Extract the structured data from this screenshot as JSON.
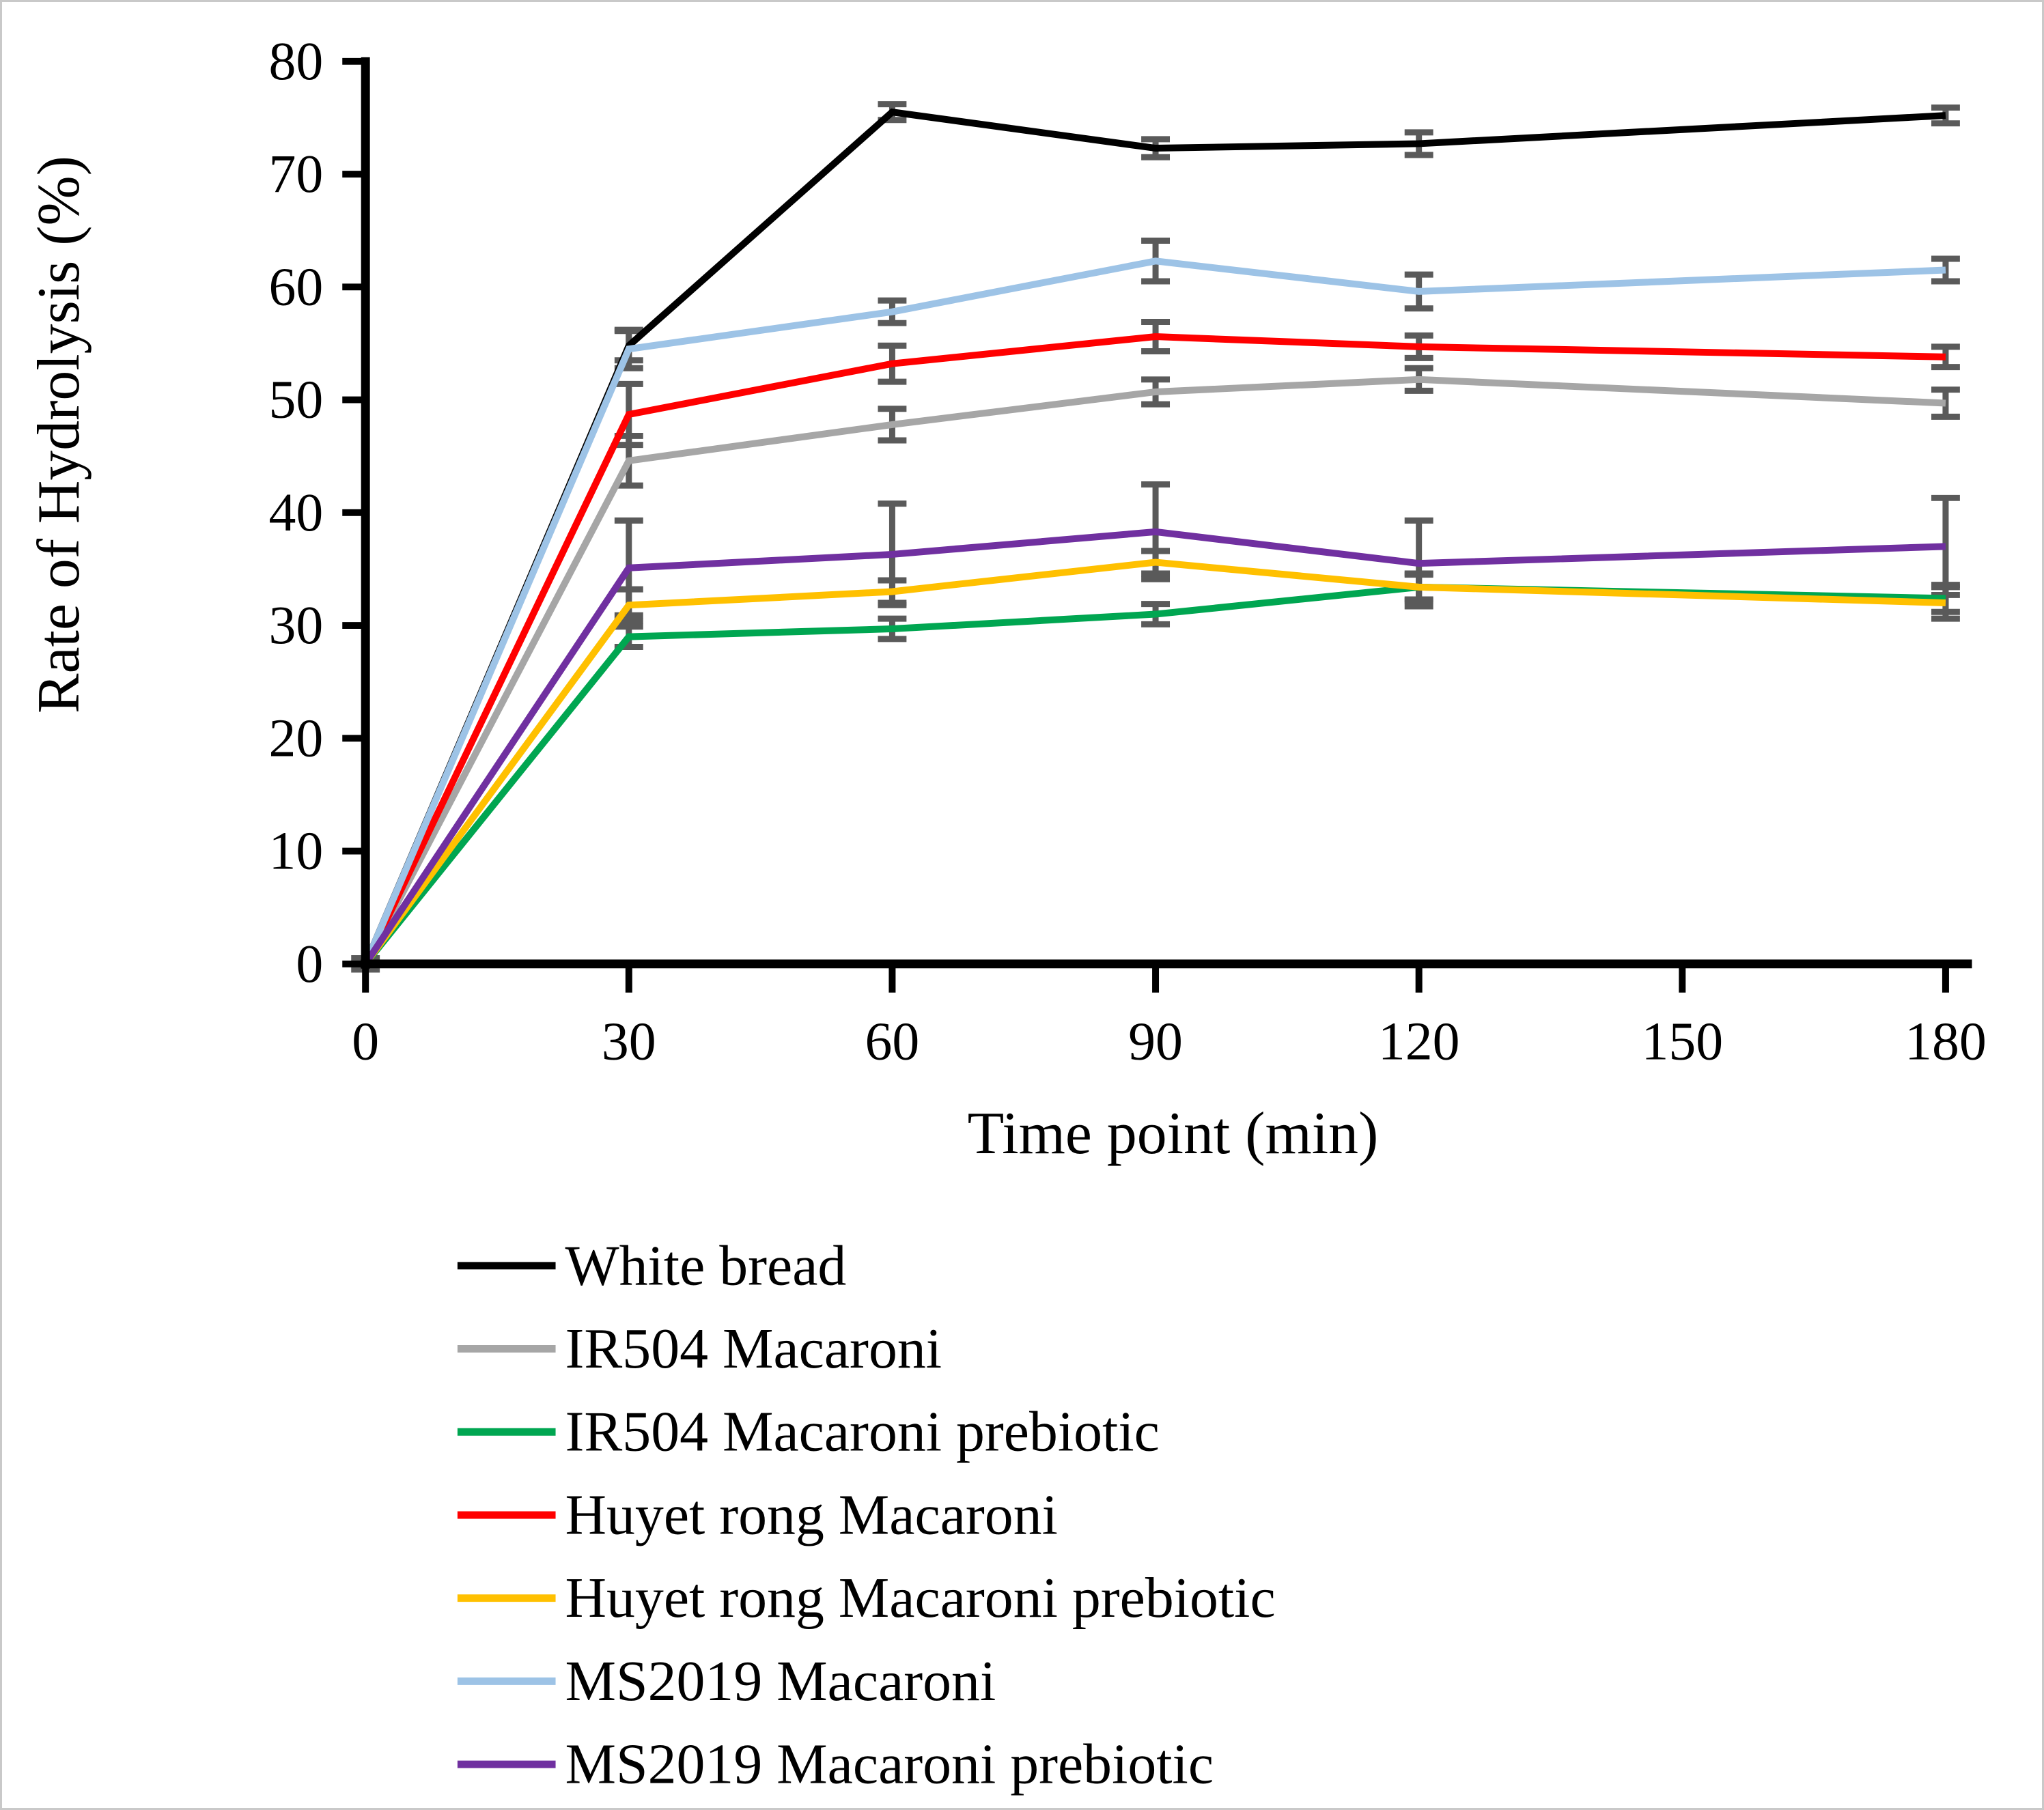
{
  "figure": {
    "background": "#ffffff",
    "border_color": "#c9c9c9",
    "error_bar_color": "#5a5a5a",
    "axis_color": "#000000"
  },
  "chart_data": {
    "type": "line",
    "title": "",
    "xlabel": "Time point (min)",
    "ylabel": "Rate of Hydrolysis (%)",
    "x": [
      0,
      30,
      60,
      90,
      120,
      180
    ],
    "x_ticks": [
      0,
      30,
      60,
      90,
      120,
      150,
      180
    ],
    "xlim": [
      0,
      183
    ],
    "y_ticks": [
      0,
      10,
      20,
      30,
      40,
      50,
      60,
      70,
      80
    ],
    "ylim": [
      0,
      80
    ],
    "grid": false,
    "legend_position": "bottom-left",
    "series": [
      {
        "name": "White bread",
        "color": "#000000",
        "values": [
          0,
          54.8,
          75.5,
          72.3,
          72.7,
          75.2
        ],
        "errors": [
          0,
          1.3,
          0.7,
          0.8,
          1.0,
          0.7
        ]
      },
      {
        "name": "IR504 Macaroni",
        "color": "#a6a6a6",
        "values": [
          0,
          44.6,
          47.8,
          50.7,
          51.8,
          49.7
        ],
        "errors": [
          0.5,
          2.2,
          1.4,
          1.1,
          1.0,
          1.2
        ]
      },
      {
        "name": "IR504 Macaroni prebiotic",
        "color": "#00a651",
        "values": [
          0,
          29.0,
          29.7,
          31.0,
          33.4,
          32.4
        ],
        "errors": [
          0,
          0.9,
          0.9,
          0.9,
          1.1,
          1.2
        ]
      },
      {
        "name": "Huyet rong Macaroni",
        "color": "#ff0000",
        "values": [
          0,
          48.7,
          53.2,
          55.6,
          54.7,
          53.8
        ],
        "errors": [
          0,
          2.7,
          1.6,
          1.3,
          1.0,
          0.9
        ]
      },
      {
        "name": "Huyet rong Macaroni prebiotic",
        "color": "#ffc000",
        "values": [
          0,
          31.8,
          33.0,
          35.6,
          33.4,
          32.0
        ],
        "errors": [
          0,
          1.4,
          1.0,
          1.0,
          1.2,
          1.4
        ]
      },
      {
        "name": "MS2019 Macaroni",
        "color": "#9dc3e6",
        "values": [
          0,
          54.5,
          57.8,
          62.3,
          59.6,
          61.5
        ],
        "errors": [
          0,
          1.7,
          1.0,
          1.8,
          1.5,
          1.0
        ]
      },
      {
        "name": "MS2019 Macaroni prebiotic",
        "color": "#7030a0",
        "values": [
          0,
          35.1,
          36.3,
          38.3,
          35.5,
          37.0
        ],
        "errors": [
          0,
          4.2,
          4.5,
          4.2,
          3.8,
          4.3
        ]
      }
    ]
  }
}
